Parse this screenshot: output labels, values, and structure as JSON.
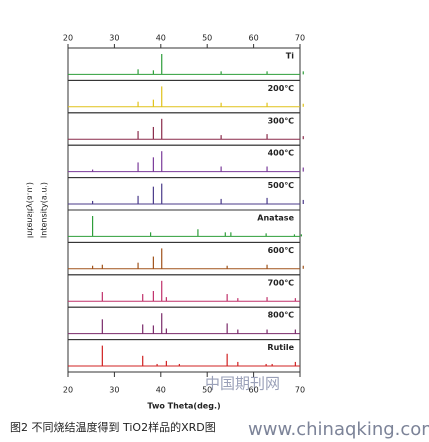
{
  "chart_data": {
    "type": "stacked_xrd",
    "y_label": "Intensity(a.u.)",
    "x_label": "Two Theta(deg.)",
    "caption": "图2 不同烧结温度得到 TiO2样品的XRD图",
    "watermark": [
      "中国期刊网",
      "www.chinaqking.com"
    ],
    "xlim": [
      20,
      70
    ],
    "xticks": [
      20,
      30,
      40,
      50,
      60,
      70
    ],
    "panels": [
      {
        "name": "Ti",
        "color": "#2e9e3a",
        "peaks_x": [
          35.1,
          38.4,
          40.2,
          53.0,
          62.9,
          70.7
        ],
        "peaks_y": [
          25,
          20,
          100,
          15,
          15,
          15
        ]
      },
      {
        "name": "200℃",
        "color": "#e0c21a",
        "peaks_x": [
          35.1,
          38.4,
          40.2,
          53.0,
          62.9,
          70.7
        ],
        "peaks_y": [
          25,
          35,
          100,
          20,
          20,
          15
        ]
      },
      {
        "name": "300℃",
        "color": "#8a2a4a",
        "peaks_x": [
          35.1,
          38.4,
          40.2,
          53.0,
          62.9,
          70.7
        ],
        "peaks_y": [
          40,
          60,
          100,
          20,
          25,
          15
        ]
      },
      {
        "name": "400℃",
        "color": "#7a3a9a",
        "peaks_x": [
          25.3,
          35.1,
          38.4,
          40.2,
          53.0,
          62.9,
          70.7
        ],
        "peaks_y": [
          10,
          45,
          70,
          100,
          25,
          25,
          20
        ]
      },
      {
        "name": "500℃",
        "color": "#4a3a8a",
        "peaks_x": [
          25.3,
          35.1,
          38.4,
          40.2,
          53.0,
          62.9,
          70.7
        ],
        "peaks_y": [
          15,
          40,
          85,
          100,
          25,
          30,
          20
        ]
      },
      {
        "name": "Anatase",
        "color": "#2e9e3a",
        "peaks_x": [
          25.3,
          37.8,
          48.0,
          53.9,
          55.1,
          62.7,
          68.8,
          70.3
        ],
        "peaks_y": [
          100,
          20,
          35,
          20,
          20,
          15,
          10,
          10
        ]
      },
      {
        "name": "600℃",
        "color": "#a0521a",
        "peaks_x": [
          25.3,
          27.4,
          35.1,
          38.4,
          40.2,
          54.3,
          62.9,
          70.7
        ],
        "peaks_y": [
          15,
          20,
          30,
          60,
          100,
          15,
          20,
          15
        ]
      },
      {
        "name": "700℃",
        "color": "#c0306a",
        "peaks_x": [
          27.4,
          36.1,
          38.4,
          40.2,
          41.2,
          54.3,
          56.6,
          62.9,
          69.0
        ],
        "peaks_y": [
          45,
          35,
          50,
          100,
          20,
          35,
          15,
          20,
          15
        ]
      },
      {
        "name": "800℃",
        "color": "#7a2a6a",
        "peaks_x": [
          27.4,
          36.1,
          38.4,
          40.2,
          41.2,
          54.3,
          56.6,
          62.9,
          69.0
        ],
        "peaks_y": [
          70,
          45,
          40,
          100,
          25,
          50,
          20,
          20,
          20
        ]
      },
      {
        "name": "Rutile",
        "color": "#d02020",
        "peaks_x": [
          27.4,
          36.1,
          39.2,
          41.2,
          44.0,
          54.3,
          56.6,
          62.7,
          64.0,
          69.0
        ],
        "peaks_y": [
          100,
          50,
          10,
          25,
          10,
          60,
          20,
          10,
          10,
          20
        ]
      }
    ]
  }
}
